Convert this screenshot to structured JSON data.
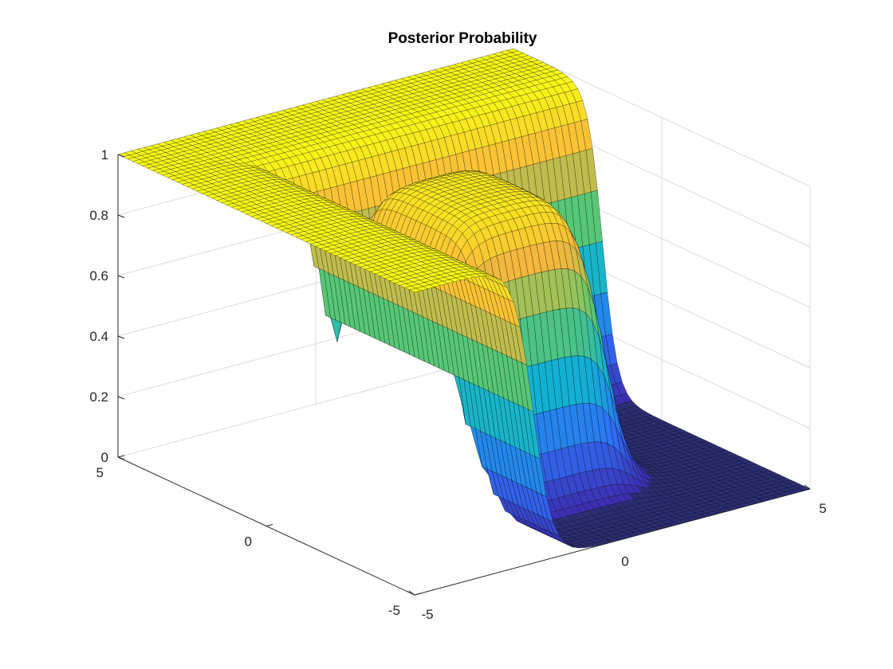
{
  "chart_data": {
    "type": "surface",
    "title": "Posterior Probability",
    "x": {
      "label": "",
      "range": [
        -5,
        5
      ],
      "ticks": [
        -5,
        0,
        5
      ]
    },
    "y": {
      "label": "",
      "range": [
        -5,
        5
      ],
      "ticks": [
        -5,
        0,
        5
      ]
    },
    "z": {
      "label": "",
      "range": [
        0,
        1
      ],
      "ticks": [
        0,
        0.2,
        0.4,
        0.6,
        0.8,
        1
      ]
    },
    "grid": true,
    "colormap": [
      "#3e26a8",
      "#2f6ff7",
      "#12b2d3",
      "#5fc86c",
      "#f9b73c",
      "#f9fb15"
    ],
    "edge_color": "#000000",
    "floor_color": "#2b2e74",
    "surface_description": "Posterior probability surface: a central raised block near z=1 between x≈-2..2, a high plateau at z=1 for x<-2 and for y>2, falling steeply to 0 elsewhere",
    "function": {
      "plateau_left_x": -2,
      "plateau_back_y": 2,
      "center_block": {
        "x": [
          -2,
          2
        ],
        "y": [
          -2.5,
          2
        ],
        "z": 0.95
      },
      "floor_z": 0
    }
  }
}
